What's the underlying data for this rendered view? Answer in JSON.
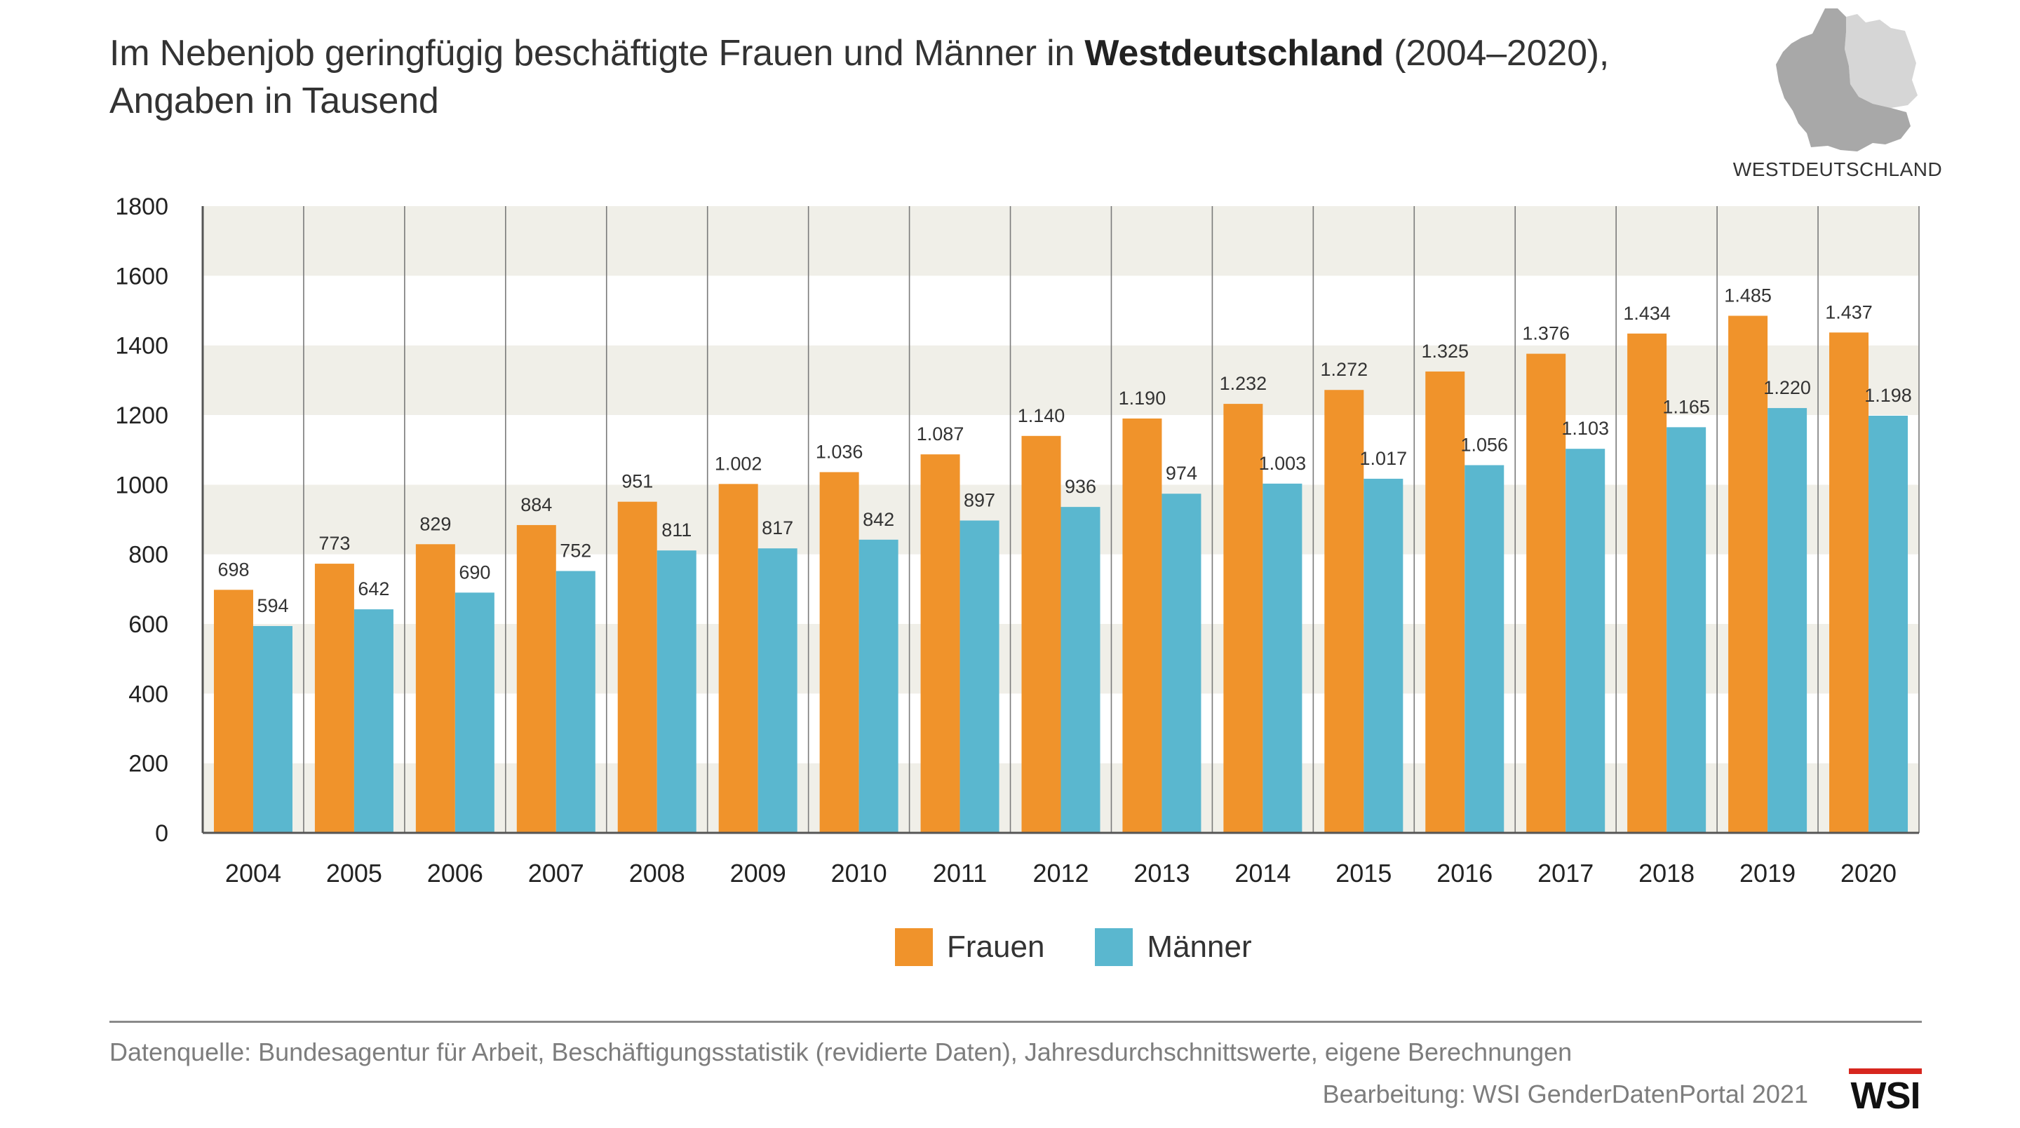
{
  "title": {
    "line1_pre": "Im Nebenjob geringfügig beschäftigte Frauen und Männer in ",
    "line1_bold": "Westdeutschland",
    "line1_post": " (2004–2020),",
    "line2": "Angaben in Tausend"
  },
  "region_label": "WESTDEUTSCHLAND",
  "colors": {
    "frauen": "#f0932b",
    "maenner": "#5ab7cf",
    "band_dark": "#f0efe8",
    "band_light": "#ffffff",
    "map_west": "#a8a8a8",
    "map_east": "#d6d6d6",
    "wsi_red": "#d7261e"
  },
  "chart_data": {
    "type": "bar",
    "categories": [
      "2004",
      "2005",
      "2006",
      "2007",
      "2008",
      "2009",
      "2010",
      "2011",
      "2012",
      "2013",
      "2014",
      "2015",
      "2016",
      "2017",
      "2018",
      "2019",
      "2020"
    ],
    "series": [
      {
        "name": "Frauen",
        "values": [
          698,
          773,
          829,
          884,
          951,
          1002,
          1036,
          1087,
          1140,
          1190,
          1232,
          1272,
          1325,
          1376,
          1434,
          1485,
          1437
        ],
        "labels": [
          "698",
          "773",
          "829",
          "884",
          "951",
          "1.002",
          "1.036",
          "1.087",
          "1.140",
          "1.190",
          "1.232",
          "1.272",
          "1.325",
          "1.376",
          "1.434",
          "1.485",
          "1.437"
        ]
      },
      {
        "name": "Männer",
        "values": [
          594,
          642,
          690,
          752,
          811,
          817,
          842,
          897,
          936,
          974,
          1003,
          1017,
          1056,
          1103,
          1165,
          1220,
          1198
        ],
        "labels": [
          "594",
          "642",
          "690",
          "752",
          "811",
          "817",
          "842",
          "897",
          "936",
          "974",
          "1.003",
          "1.017",
          "1.056",
          "1.103",
          "1.165",
          "1.220",
          "1.198"
        ]
      }
    ],
    "yticks": [
      "0",
      "200",
      "400",
      "600",
      "800",
      "1000",
      "1200",
      "1400",
      "1600",
      "1800"
    ],
    "ylim": [
      0,
      1800
    ],
    "grid": "alternating horizontal bands, vertical separators between years",
    "legend_position": "bottom-center"
  },
  "legend": {
    "frauen": "Frauen",
    "maenner": "Männer"
  },
  "footer": {
    "source": "Datenquelle: Bundesagentur für Arbeit, Beschäftigungsstatistik (revidierte Daten), Jahresdurchschnittswerte, eigene Berechnungen",
    "credit": "Bearbeitung: WSI GenderDatenPortal 2021",
    "logo_text": "WSI"
  }
}
